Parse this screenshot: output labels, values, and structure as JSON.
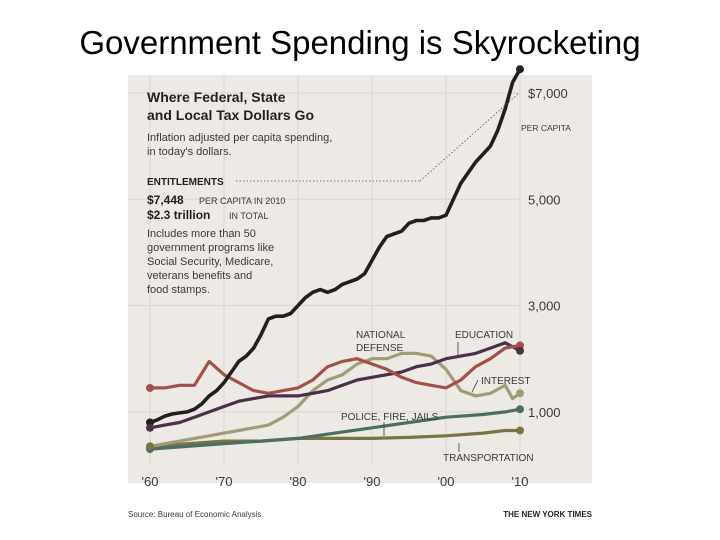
{
  "slide_title": "Government Spending is Skyrocketing",
  "chart_data": {
    "type": "line",
    "title": "Where Federal, State and Local Tax Dollars Go",
    "title_lines": [
      "Where Federal, State",
      "and Local Tax Dollars Go"
    ],
    "subtitle_lines": [
      "Inflation adjusted per capita spending,",
      "in today's dollars."
    ],
    "annotation": {
      "heading": "ENTITLEMENTS",
      "value_big": "$7,448",
      "value_note": "PER CAPITA IN 2010",
      "total_big": "$2.3 trillion",
      "total_note": "IN TOTAL",
      "body_lines": [
        "Includes more than 50",
        "government programs like",
        "Social Security, Medicare,",
        "veterans benefits and",
        "food stamps."
      ]
    },
    "y_tick_labels": [
      {
        "value": 1000,
        "label": "1,000"
      },
      {
        "value": 3000,
        "label": "3,000"
      },
      {
        "value": 5000,
        "label": "5,000"
      },
      {
        "value": 7000,
        "label": "$7,000"
      }
    ],
    "y_unit_note": "PER CAPITA",
    "x_tick_labels": [
      {
        "value": 1960,
        "label": "'60"
      },
      {
        "value": 1970,
        "label": "'70"
      },
      {
        "value": 1980,
        "label": "'80"
      },
      {
        "value": 1990,
        "label": "'90"
      },
      {
        "value": 2000,
        "label": "'00"
      },
      {
        "value": 2010,
        "label": "'10"
      }
    ],
    "xlim": [
      1958,
      2012
    ],
    "ylim": [
      0,
      7600
    ],
    "grid": true,
    "series": [
      {
        "name": "ENTITLEMENTS",
        "color": "#231f20",
        "x": [
          1960,
          1961,
          1962,
          1963,
          1964,
          1965,
          1966,
          1967,
          1968,
          1969,
          1970,
          1971,
          1972,
          1973,
          1974,
          1975,
          1976,
          1977,
          1978,
          1979,
          1980,
          1981,
          1982,
          1983,
          1984,
          1985,
          1986,
          1987,
          1988,
          1989,
          1990,
          1991,
          1992,
          1993,
          1994,
          1995,
          1996,
          1997,
          1998,
          1999,
          2000,
          2001,
          2002,
          2003,
          2004,
          2005,
          2006,
          2007,
          2008,
          2009,
          2010
        ],
        "values": [
          800,
          850,
          920,
          960,
          980,
          1000,
          1050,
          1150,
          1300,
          1400,
          1550,
          1750,
          1950,
          2050,
          2200,
          2450,
          2750,
          2800,
          2800,
          2850,
          3000,
          3150,
          3250,
          3300,
          3250,
          3300,
          3400,
          3450,
          3500,
          3600,
          3850,
          4100,
          4300,
          4350,
          4400,
          4550,
          4600,
          4600,
          4650,
          4650,
          4700,
          5000,
          5300,
          5500,
          5700,
          5850,
          6000,
          6300,
          6700,
          7200,
          7448
        ]
      },
      {
        "name": "NATIONAL DEFENSE",
        "color": "#a4504a",
        "x": [
          1960,
          1962,
          1964,
          1966,
          1968,
          1970,
          1972,
          1974,
          1976,
          1978,
          1980,
          1982,
          1984,
          1986,
          1988,
          1990,
          1992,
          1994,
          1996,
          1998,
          2000,
          2002,
          2004,
          2006,
          2008,
          2010
        ],
        "values": [
          1450,
          1450,
          1500,
          1500,
          1950,
          1700,
          1550,
          1400,
          1350,
          1400,
          1450,
          1600,
          1850,
          1950,
          2000,
          1900,
          1800,
          1650,
          1550,
          1500,
          1450,
          1600,
          1850,
          2000,
          2200,
          2250
        ]
      },
      {
        "name": "EDUCATION",
        "color": "#4a3048",
        "x": [
          1960,
          1962,
          1964,
          1966,
          1968,
          1970,
          1972,
          1974,
          1976,
          1978,
          1980,
          1982,
          1984,
          1986,
          1988,
          1990,
          1992,
          1994,
          1996,
          1998,
          2000,
          2002,
          2004,
          2006,
          2008,
          2010
        ],
        "values": [
          700,
          750,
          800,
          900,
          1000,
          1100,
          1200,
          1250,
          1300,
          1300,
          1300,
          1350,
          1400,
          1500,
          1600,
          1650,
          1700,
          1750,
          1850,
          1900,
          2000,
          2050,
          2100,
          2200,
          2300,
          2150
        ]
      },
      {
        "name": "INTEREST",
        "color": "#a19c77",
        "x": [
          1960,
          1962,
          1964,
          1966,
          1968,
          1970,
          1972,
          1974,
          1976,
          1978,
          1980,
          1982,
          1984,
          1986,
          1988,
          1990,
          1992,
          1994,
          1996,
          1998,
          2000,
          2002,
          2004,
          2006,
          2008,
          2009,
          2010
        ],
        "values": [
          350,
          400,
          450,
          500,
          550,
          600,
          650,
          700,
          750,
          900,
          1100,
          1400,
          1600,
          1700,
          1900,
          2000,
          2000,
          2100,
          2100,
          2050,
          1800,
          1400,
          1300,
          1350,
          1500,
          1250,
          1350
        ]
      },
      {
        "name": "POLICE, FIRE, JAILS",
        "color": "#4d6e62",
        "x": [
          1960,
          1965,
          1970,
          1975,
          1980,
          1985,
          1990,
          1995,
          2000,
          2005,
          2008,
          2010
        ],
        "values": [
          300,
          350,
          400,
          450,
          500,
          600,
          700,
          800,
          900,
          950,
          1000,
          1050
        ]
      },
      {
        "name": "TRANSPORTATION",
        "color": "#7b7442",
        "x": [
          1960,
          1965,
          1970,
          1975,
          1980,
          1985,
          1990,
          1995,
          2000,
          2005,
          2008,
          2010
        ],
        "values": [
          350,
          400,
          450,
          450,
          500,
          500,
          500,
          520,
          550,
          600,
          650,
          650
        ]
      }
    ],
    "series_labels": [
      {
        "series": "NATIONAL DEFENSE",
        "lines": [
          "NATIONAL",
          "DEFENSE"
        ]
      },
      {
        "series": "EDUCATION",
        "lines": [
          "EDUCATION"
        ]
      },
      {
        "series": "INTEREST",
        "lines": [
          "INTEREST"
        ]
      },
      {
        "series": "POLICE, FIRE, JAILS",
        "lines": [
          "POLICE, FIRE, JAILS"
        ]
      },
      {
        "series": "TRANSPORTATION",
        "lines": [
          "TRANSPORTATION"
        ]
      }
    ],
    "source": "Source: Bureau of Economic Analysis",
    "credit": "THE NEW YORK TIMES"
  },
  "colors": {
    "panel_bg": "#edeae6",
    "axis_text": "#3b3838",
    "grid": "#d9d5d0",
    "marker": "#231f20"
  }
}
